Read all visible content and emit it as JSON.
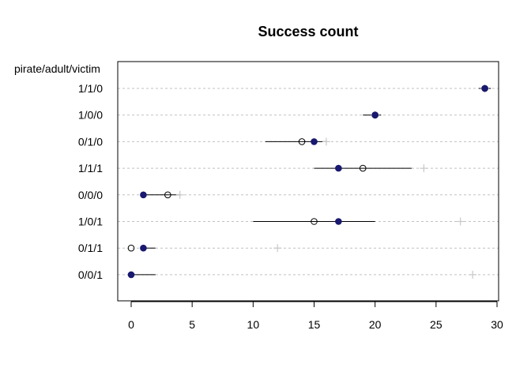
{
  "chart_data": {
    "type": "scatter",
    "title": "Success count",
    "ylabel": "pirate/adult/victim",
    "xlabel": "",
    "xlim": [
      -1,
      30.5
    ],
    "x_ticks": [
      0,
      5,
      10,
      15,
      20,
      25,
      30
    ],
    "categories": [
      "1/1/0",
      "1/0/0",
      "0/1/0",
      "1/1/1",
      "0/0/0",
      "1/0/1",
      "0/1/1",
      "0/0/1"
    ],
    "grid": true,
    "legend": "none",
    "colors": {
      "filled_point": "#191970",
      "open_point": "#000000",
      "plus_marker": "#c8c8c8",
      "interval": "#000000",
      "grid": "#c0c0c0"
    },
    "series": [
      {
        "marker": "filled-circle",
        "values": [
          29,
          20,
          15,
          17,
          1,
          17,
          1,
          0
        ]
      },
      {
        "marker": "open-circle",
        "values": [
          29,
          20,
          14,
          19,
          3,
          15,
          0,
          null
        ]
      },
      {
        "marker": "plus",
        "values": [
          29,
          20,
          16,
          24,
          4,
          27,
          12,
          28
        ]
      }
    ],
    "intervals": [
      {
        "low": 28.5,
        "high": 29.5
      },
      {
        "low": 19,
        "high": 20.5
      },
      {
        "low": 11,
        "high": 16
      },
      {
        "low": 15,
        "high": 23
      },
      {
        "low": 1,
        "high": 4
      },
      {
        "low": 10,
        "high": 20
      },
      {
        "low": 1,
        "high": 2
      },
      {
        "low": 0,
        "high": 2
      }
    ]
  }
}
